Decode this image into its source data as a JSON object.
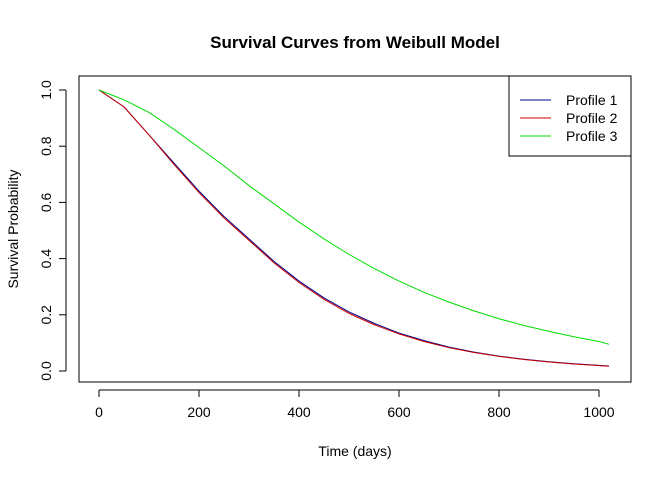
{
  "chart_data": {
    "type": "line",
    "title": "Survival Curves from Weibull Model",
    "xlabel": "Time (days)",
    "ylabel": "Survival Probability",
    "xlim": [
      0,
      1020
    ],
    "ylim": [
      0,
      1
    ],
    "xticks": [
      0,
      200,
      400,
      600,
      800,
      1000
    ],
    "yticks": [
      0.0,
      0.2,
      0.4,
      0.6,
      0.8,
      1.0
    ],
    "xtick_labels": [
      "0",
      "200",
      "400",
      "600",
      "800",
      "1000"
    ],
    "ytick_labels": [
      "0.0",
      "0.2",
      "0.4",
      "0.6",
      "0.8",
      "1.0"
    ],
    "grid": false,
    "legend_position": "top-right",
    "x": [
      0,
      50,
      100,
      150,
      200,
      250,
      300,
      350,
      400,
      450,
      500,
      550,
      600,
      650,
      700,
      750,
      800,
      850,
      900,
      950,
      1000,
      1020
    ],
    "series": [
      {
        "name": "Profile 1",
        "color": "#00008B",
        "values": [
          1.0,
          0.94,
          0.84,
          0.74,
          0.64,
          0.55,
          0.47,
          0.39,
          0.32,
          0.26,
          0.21,
          0.17,
          0.135,
          0.108,
          0.085,
          0.067,
          0.053,
          0.042,
          0.033,
          0.026,
          0.02,
          0.018
        ]
      },
      {
        "name": "Profile 2",
        "color": "#CC0000",
        "values": [
          1.0,
          0.94,
          0.84,
          0.735,
          0.635,
          0.545,
          0.465,
          0.385,
          0.315,
          0.255,
          0.205,
          0.165,
          0.132,
          0.105,
          0.083,
          0.066,
          0.052,
          0.041,
          0.032,
          0.025,
          0.019,
          0.017
        ]
      },
      {
        "name": "Profile 3",
        "color": "#00DD00",
        "values": [
          1.0,
          0.965,
          0.92,
          0.86,
          0.795,
          0.73,
          0.66,
          0.595,
          0.53,
          0.47,
          0.415,
          0.365,
          0.32,
          0.28,
          0.245,
          0.214,
          0.186,
          0.162,
          0.141,
          0.122,
          0.105,
          0.095
        ]
      }
    ]
  }
}
